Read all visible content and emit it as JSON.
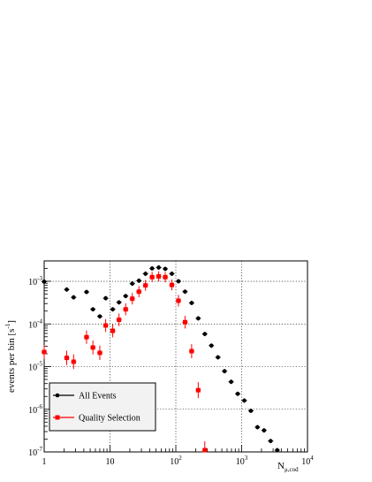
{
  "chart_data": {
    "type": "scatter",
    "title": "",
    "xlabel": "N_μ,cod",
    "xlabel_main": "N",
    "xlabel_sub": "μ,cod",
    "ylabel": "events per bin [s⁻¹]",
    "ylabel_main": "events per bin [s",
    "ylabel_sup": "-1",
    "ylabel_close": "]",
    "x_scale": "log",
    "y_scale": "log",
    "xlim": [
      1,
      10000
    ],
    "ylim": [
      1e-07,
      0.003
    ],
    "grid": true,
    "legend_position": "bottom-left",
    "x_ticks": [
      {
        "value": 1,
        "base": "1",
        "exp": ""
      },
      {
        "value": 10,
        "base": "10",
        "exp": ""
      },
      {
        "value": 100,
        "base": "10",
        "exp": "2"
      },
      {
        "value": 1000,
        "base": "10",
        "exp": "3"
      },
      {
        "value": 10000,
        "base": "10",
        "exp": "4"
      }
    ],
    "y_ticks": [
      {
        "value": 1e-07,
        "base": "10",
        "exp": "-7"
      },
      {
        "value": 1e-06,
        "base": "10",
        "exp": "-6"
      },
      {
        "value": 1e-05,
        "base": "10",
        "exp": "-5"
      },
      {
        "value": 0.0001,
        "base": "10",
        "exp": "-4"
      },
      {
        "value": 0.001,
        "base": "10",
        "exp": "-3"
      }
    ],
    "series": [
      {
        "name": "All Events",
        "color": "#000000",
        "marker": "circle",
        "points": [
          {
            "x": 1.0,
            "y": 0.00098
          },
          {
            "x": 2.2,
            "y": 0.00064
          },
          {
            "x": 2.8,
            "y": 0.00042
          },
          {
            "x": 4.4,
            "y": 0.00056
          },
          {
            "x": 5.5,
            "y": 0.00022
          },
          {
            "x": 7.0,
            "y": 0.00015
          },
          {
            "x": 8.6,
            "y": 0.0004
          },
          {
            "x": 11.0,
            "y": 0.00022
          },
          {
            "x": 13.7,
            "y": 0.00032
          },
          {
            "x": 17.3,
            "y": 0.00045
          },
          {
            "x": 21.8,
            "y": 0.00088
          },
          {
            "x": 27.5,
            "y": 0.00103
          },
          {
            "x": 34.6,
            "y": 0.0015
          },
          {
            "x": 43.6,
            "y": 0.002
          },
          {
            "x": 54.9,
            "y": 0.0021
          },
          {
            "x": 69.1,
            "y": 0.00195
          },
          {
            "x": 87.0,
            "y": 0.0015
          },
          {
            "x": 109.6,
            "y": 0.001
          },
          {
            "x": 138.0,
            "y": 0.00057
          },
          {
            "x": 173.8,
            "y": 0.00031
          },
          {
            "x": 218.8,
            "y": 0.000135
          },
          {
            "x": 275.4,
            "y": 5.8e-05
          },
          {
            "x": 346.7,
            "y": 3.1e-05
          },
          {
            "x": 436.5,
            "y": 1.65e-05
          },
          {
            "x": 549.5,
            "y": 7.8e-06
          },
          {
            "x": 691.8,
            "y": 4.4e-06
          },
          {
            "x": 871.0,
            "y": 2.3e-06
          },
          {
            "x": 1096.5,
            "y": 1.6e-06
          },
          {
            "x": 1380.4,
            "y": 9.2e-07
          },
          {
            "x": 1737.8,
            "y": 3.8e-07
          },
          {
            "x": 2187.8,
            "y": 3.2e-07
          },
          {
            "x": 2754.2,
            "y": 1.8e-07
          },
          {
            "x": 3467.4,
            "y": 1.1e-07
          }
        ]
      },
      {
        "name": "Quality Selection",
        "color": "#ff0000",
        "marker": "square",
        "points": [
          {
            "x": 1.0,
            "y": 2.2e-05
          },
          {
            "x": 2.2,
            "y": 1.6e-05
          },
          {
            "x": 2.8,
            "y": 1.3e-05
          },
          {
            "x": 4.4,
            "y": 4.9e-05
          },
          {
            "x": 5.5,
            "y": 2.8e-05
          },
          {
            "x": 7.0,
            "y": 2.1e-05
          },
          {
            "x": 8.6,
            "y": 9.2e-05
          },
          {
            "x": 11.0,
            "y": 6.9e-05
          },
          {
            "x": 13.7,
            "y": 0.000125
          },
          {
            "x": 17.3,
            "y": 0.00022
          },
          {
            "x": 21.8,
            "y": 0.00039
          },
          {
            "x": 27.5,
            "y": 0.00057
          },
          {
            "x": 34.6,
            "y": 0.0008
          },
          {
            "x": 43.6,
            "y": 0.00125
          },
          {
            "x": 54.9,
            "y": 0.0013
          },
          {
            "x": 69.1,
            "y": 0.00125
          },
          {
            "x": 87.0,
            "y": 0.00082
          },
          {
            "x": 109.6,
            "y": 0.00035
          },
          {
            "x": 138.0,
            "y": 0.00011
          },
          {
            "x": 173.8,
            "y": 2.3e-05
          },
          {
            "x": 218.8,
            "y": 2.8e-06
          },
          {
            "x": 275.4,
            "y": 1.1e-07
          }
        ]
      }
    ]
  }
}
